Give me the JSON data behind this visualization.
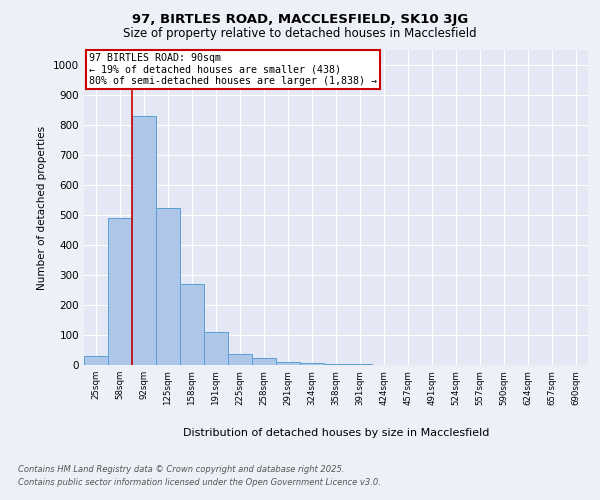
{
  "title1": "97, BIRTLES ROAD, MACCLESFIELD, SK10 3JG",
  "title2": "Size of property relative to detached houses in Macclesfield",
  "xlabel": "Distribution of detached houses by size in Macclesfield",
  "ylabel": "Number of detached properties",
  "bins": [
    "25sqm",
    "58sqm",
    "92sqm",
    "125sqm",
    "158sqm",
    "191sqm",
    "225sqm",
    "258sqm",
    "291sqm",
    "324sqm",
    "358sqm",
    "391sqm",
    "424sqm",
    "457sqm",
    "491sqm",
    "524sqm",
    "557sqm",
    "590sqm",
    "624sqm",
    "657sqm",
    "690sqm"
  ],
  "values": [
    30,
    490,
    830,
    525,
    270,
    110,
    38,
    22,
    10,
    8,
    5,
    5,
    0,
    0,
    0,
    0,
    0,
    0,
    0,
    0,
    0
  ],
  "bar_color": "#aec6e8",
  "bar_edge_color": "#5a9fd4",
  "vline_x_index": 2,
  "vline_color": "#cc0000",
  "annotation_text": "97 BIRTLES ROAD: 90sqm\n← 19% of detached houses are smaller (438)\n80% of semi-detached houses are larger (1,838) →",
  "annotation_box_color": "#cc0000",
  "ylim": [
    0,
    1050
  ],
  "yticks": [
    0,
    100,
    200,
    300,
    400,
    500,
    600,
    700,
    800,
    900,
    1000
  ],
  "footer1": "Contains HM Land Registry data © Crown copyright and database right 2025.",
  "footer2": "Contains public sector information licensed under the Open Government Licence v3.0.",
  "bg_color": "#eef0f8",
  "plot_bg_color": "#e4e8f4"
}
